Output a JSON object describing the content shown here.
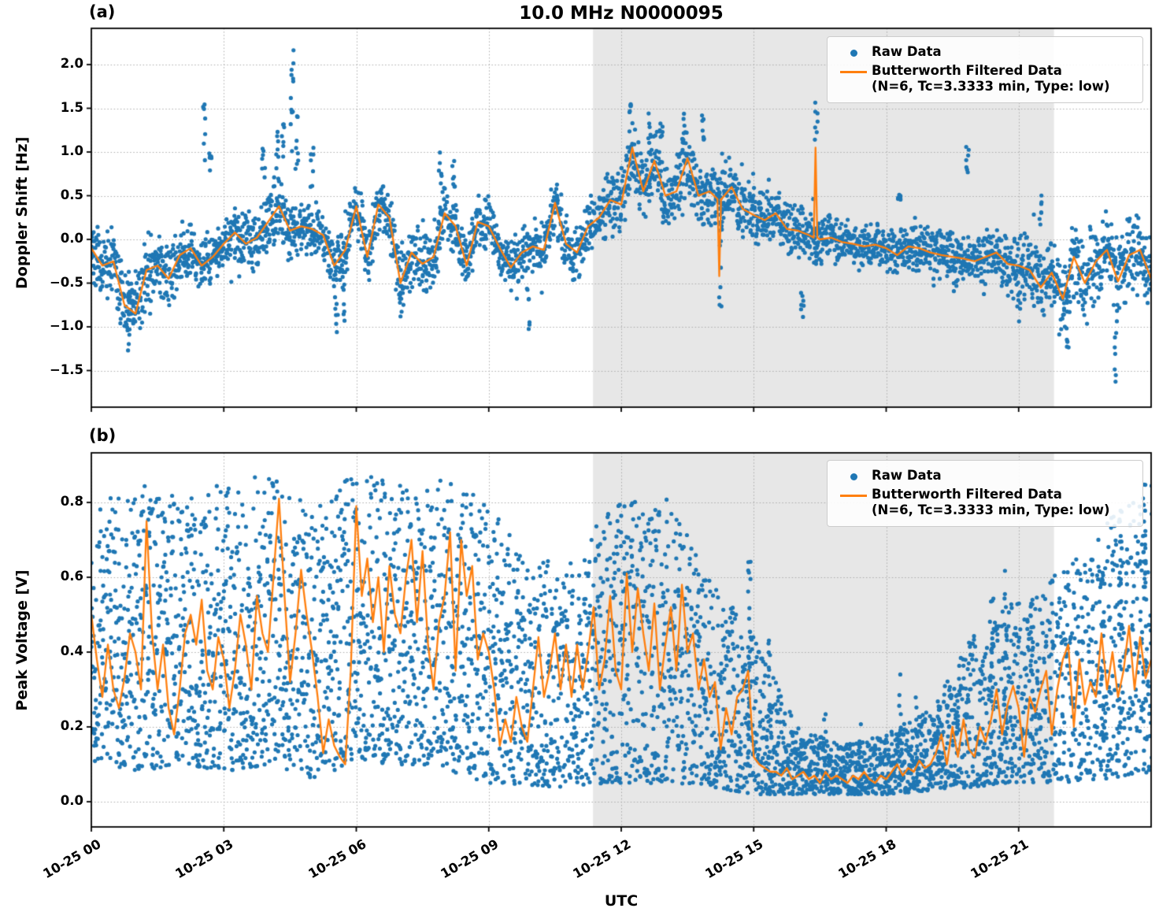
{
  "figure": {
    "title": "10.0 MHz N0000095",
    "panel_a_tag": "(a)",
    "panel_b_tag": "(b)",
    "xlabel": "UTC",
    "colors": {
      "raw": "#1f77b4",
      "filtered": "#ff7f0e",
      "shade": "#e7e7e7",
      "grid": "#ababab",
      "spine": "#000000",
      "legend_border": "#cccccc"
    },
    "legend": {
      "raw_label": "Raw Data",
      "filtered_label": "Butterworth Filtered Data",
      "filtered_sublabel": "(N=6, Tc=3.3333 min, Type: low)"
    }
  },
  "chart_data": [
    {
      "panel": "a",
      "type": "scatter",
      "ylabel": "Doppler Shift [Hz]",
      "ylim": [
        -1.92,
        2.41
      ],
      "yticks": [
        2.0,
        1.5,
        1.0,
        0.5,
        0.0,
        -0.5,
        -1.0,
        -1.5
      ],
      "ytick_labels": [
        "2.0",
        "1.5",
        "1.0",
        "0.5",
        "0.0",
        "−0.5",
        "−1.0",
        "−1.5"
      ],
      "x_hours_range": [
        0,
        24
      ],
      "xticks_hours": [
        0,
        3,
        6,
        9,
        12,
        15,
        18,
        21
      ],
      "xtick_labels": [
        "10-25 00",
        "10-25 03",
        "10-25 06",
        "10-25 09",
        "10-25 12",
        "10-25 15",
        "10-25 18",
        "10-25 21"
      ],
      "shaded_region_hours": [
        11.36,
        21.8
      ],
      "grid": true,
      "legend_entries": [
        "Raw Data",
        "Butterworth Filtered Data (N=6, Tc=3.3333 min, Type: low)"
      ],
      "filtered_step_h": 0.25,
      "filtered": [
        -0.1,
        -0.3,
        -0.25,
        -0.75,
        -0.85,
        -0.35,
        -0.3,
        -0.45,
        -0.18,
        -0.1,
        -0.3,
        -0.2,
        -0.05,
        0.08,
        -0.05,
        0.02,
        0.2,
        0.38,
        0.1,
        0.15,
        0.12,
        0.05,
        -0.3,
        -0.12,
        0.38,
        -0.2,
        0.4,
        0.25,
        -0.5,
        -0.15,
        -0.28,
        -0.2,
        0.3,
        0.15,
        -0.3,
        0.2,
        0.15,
        -0.1,
        -0.32,
        -0.15,
        -0.08,
        -0.12,
        0.42,
        -0.05,
        -0.15,
        0.15,
        0.25,
        0.45,
        0.4,
        1.05,
        0.55,
        0.9,
        0.5,
        0.55,
        0.93,
        0.5,
        0.55,
        0.45,
        0.6,
        0.35,
        0.28,
        0.22,
        0.3,
        0.12,
        0.1,
        0.05,
        0.0,
        0.02,
        -0.03,
        -0.05,
        -0.08,
        -0.06,
        -0.1,
        -0.18,
        -0.08,
        -0.1,
        -0.15,
        -0.18,
        -0.2,
        -0.22,
        -0.25,
        -0.2,
        -0.15,
        -0.28,
        -0.3,
        -0.35,
        -0.55,
        -0.38,
        -0.68,
        -0.2,
        -0.5,
        -0.25,
        -0.12,
        -0.48,
        -0.18,
        -0.12,
        -0.45
      ],
      "band_halfwidth_step_h": 1,
      "band_halfwidth": [
        0.3,
        0.45,
        0.3,
        0.28,
        0.35,
        0.3,
        0.3,
        0.35,
        0.3,
        0.3,
        0.28,
        0.3,
        0.35,
        0.35,
        0.35,
        0.3,
        0.3,
        0.22,
        0.22,
        0.25,
        0.28,
        0.35,
        0.4,
        0.45,
        0.4
      ],
      "line_spikes": [
        {
          "x": 14.22,
          "y": -0.42
        },
        {
          "x": 16.4,
          "y": 1.05
        }
      ],
      "outlier_columns": [
        [
          0.85,
          -1.55,
          -0.6
        ],
        [
          2.55,
          0.9,
          1.57
        ],
        [
          2.7,
          0.6,
          1.2
        ],
        [
          3.9,
          0.6,
          1.05
        ],
        [
          4.2,
          0.8,
          1.45
        ],
        [
          4.55,
          1.0,
          2.2
        ],
        [
          4.35,
          0.9,
          1.6
        ],
        [
          4.65,
          0.8,
          1.55
        ],
        [
          5.0,
          0.6,
          1.05
        ],
        [
          5.55,
          -1.1,
          -0.5
        ],
        [
          5.7,
          -0.95,
          -0.5
        ],
        [
          7.0,
          -0.9,
          -0.5
        ],
        [
          7.9,
          0.6,
          1.0
        ],
        [
          8.2,
          0.6,
          0.97
        ],
        [
          9.9,
          -1.08,
          -0.55
        ],
        [
          12.2,
          1.2,
          1.55
        ],
        [
          12.65,
          1.1,
          1.45
        ],
        [
          12.9,
          1.0,
          1.35
        ],
        [
          13.4,
          1.05,
          1.45
        ],
        [
          13.85,
          1.0,
          1.42
        ],
        [
          14.25,
          -0.78,
          1.15
        ],
        [
          16.1,
          -1.02,
          -0.45
        ],
        [
          16.42,
          1.1,
          1.62
        ],
        [
          16.42,
          -0.38,
          0.0
        ],
        [
          18.3,
          0.45,
          0.55
        ],
        [
          19.84,
          0.72,
          1.07
        ],
        [
          21.0,
          -0.95,
          -0.6
        ],
        [
          21.5,
          0.17,
          0.53
        ],
        [
          22.1,
          -1.3,
          -0.7
        ],
        [
          23.2,
          -1.7,
          -0.9
        ]
      ]
    },
    {
      "panel": "b",
      "type": "scatter",
      "ylabel": "Peak Voltage [V]",
      "ylim": [
        -0.067,
        0.933
      ],
      "yticks": [
        0.8,
        0.6,
        0.4,
        0.2,
        0.0
      ],
      "ytick_labels": [
        "0.8",
        "0.6",
        "0.4",
        "0.2",
        "0.0"
      ],
      "x_hours_range": [
        0,
        24
      ],
      "xticks_hours": [
        0,
        3,
        6,
        9,
        12,
        15,
        18,
        21
      ],
      "xtick_labels": [
        "10-25 00",
        "10-25 03",
        "10-25 06",
        "10-25 09",
        "10-25 12",
        "10-25 15",
        "10-25 18",
        "10-25 21"
      ],
      "shaded_region_hours": [
        11.36,
        21.8
      ],
      "grid": true,
      "legend_entries": [
        "Raw Data",
        "Butterworth Filtered Data (N=6, Tc=3.3333 min, Type: low)"
      ],
      "filtered_step_h": 0.125,
      "filtered": [
        0.5,
        0.38,
        0.28,
        0.42,
        0.3,
        0.25,
        0.33,
        0.45,
        0.4,
        0.3,
        0.75,
        0.45,
        0.3,
        0.42,
        0.25,
        0.18,
        0.3,
        0.45,
        0.5,
        0.42,
        0.54,
        0.35,
        0.3,
        0.44,
        0.38,
        0.25,
        0.35,
        0.5,
        0.42,
        0.3,
        0.55,
        0.45,
        0.4,
        0.6,
        0.81,
        0.55,
        0.32,
        0.45,
        0.62,
        0.5,
        0.4,
        0.28,
        0.13,
        0.22,
        0.15,
        0.12,
        0.1,
        0.35,
        0.79,
        0.55,
        0.65,
        0.48,
        0.6,
        0.4,
        0.63,
        0.5,
        0.45,
        0.6,
        0.7,
        0.48,
        0.67,
        0.42,
        0.3,
        0.48,
        0.55,
        0.72,
        0.35,
        0.7,
        0.55,
        0.63,
        0.38,
        0.45,
        0.4,
        0.3,
        0.15,
        0.22,
        0.16,
        0.28,
        0.2,
        0.16,
        0.3,
        0.44,
        0.28,
        0.35,
        0.45,
        0.3,
        0.42,
        0.28,
        0.42,
        0.3,
        0.4,
        0.52,
        0.3,
        0.38,
        0.55,
        0.35,
        0.3,
        0.61,
        0.4,
        0.57,
        0.45,
        0.35,
        0.53,
        0.3,
        0.42,
        0.52,
        0.35,
        0.58,
        0.4,
        0.45,
        0.3,
        0.38,
        0.28,
        0.32,
        0.14,
        0.25,
        0.18,
        0.28,
        0.3,
        0.35,
        0.12,
        0.1,
        0.09,
        0.08,
        0.08,
        0.07,
        0.09,
        0.06,
        0.07,
        0.08,
        0.06,
        0.07,
        0.05,
        0.08,
        0.06,
        0.07,
        0.06,
        0.05,
        0.07,
        0.06,
        0.08,
        0.06,
        0.05,
        0.07,
        0.06,
        0.08,
        0.1,
        0.07,
        0.09,
        0.08,
        0.11,
        0.09,
        0.1,
        0.13,
        0.18,
        0.1,
        0.2,
        0.12,
        0.22,
        0.14,
        0.12,
        0.2,
        0.16,
        0.22,
        0.3,
        0.18,
        0.26,
        0.31,
        0.25,
        0.12,
        0.28,
        0.24,
        0.3,
        0.35,
        0.18,
        0.3,
        0.38,
        0.42,
        0.2,
        0.38,
        0.26,
        0.32,
        0.28,
        0.45,
        0.3,
        0.4,
        0.28,
        0.35,
        0.47,
        0.3,
        0.44,
        0.33,
        0.38
      ],
      "band_step_h": 1,
      "band_hi": [
        0.8,
        0.85,
        0.82,
        0.85,
        0.88,
        0.8,
        0.88,
        0.85,
        0.86,
        0.8,
        0.62,
        0.7,
        0.8,
        0.82,
        0.6,
        0.45,
        0.2,
        0.15,
        0.18,
        0.25,
        0.45,
        0.55,
        0.62,
        0.75,
        0.85
      ],
      "band_lo": [
        0.1,
        0.08,
        0.1,
        0.08,
        0.1,
        0.06,
        0.1,
        0.1,
        0.08,
        0.05,
        0.04,
        0.04,
        0.05,
        0.05,
        0.04,
        0.02,
        0.02,
        0.02,
        0.02,
        0.03,
        0.04,
        0.05,
        0.05,
        0.06,
        0.08
      ],
      "line_spikes": [],
      "outlier_columns": [
        [
          14.9,
          0.1,
          0.65
        ],
        [
          15.35,
          0.05,
          0.45
        ],
        [
          16.6,
          0.05,
          0.3
        ],
        [
          17.4,
          0.04,
          0.22
        ],
        [
          18.3,
          0.05,
          0.35
        ],
        [
          18.7,
          0.05,
          0.3
        ],
        [
          19.2,
          0.05,
          0.33
        ],
        [
          19.6,
          0.06,
          0.3
        ],
        [
          20.4,
          0.08,
          0.55
        ],
        [
          20.7,
          0.1,
          0.62
        ],
        [
          21.3,
          0.1,
          0.55
        ],
        [
          22.9,
          0.15,
          0.66
        ],
        [
          23.3,
          0.2,
          0.8
        ],
        [
          23.85,
          0.25,
          0.88
        ]
      ]
    }
  ]
}
